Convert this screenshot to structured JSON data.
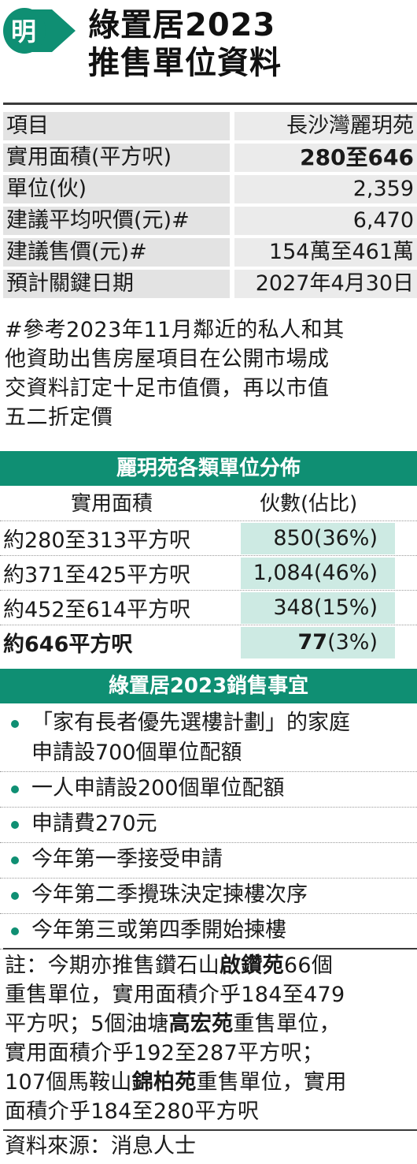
{
  "logo": {
    "text": "明",
    "accent_color": "#0f8f73"
  },
  "title": {
    "line1": "綠置居2023",
    "line2": "推售單位資料"
  },
  "info": [
    {
      "label": "項目",
      "value": "長沙灣麗玥苑"
    },
    {
      "label": "實用面積(平方呎)",
      "value": "280至646"
    },
    {
      "label": "單位(伙)",
      "value": "2,359"
    },
    {
      "label": "建議平均呎價(元)#",
      "value": "6,470"
    },
    {
      "label": "建議售價(元)#",
      "value": "154萬至461萬"
    },
    {
      "label": "預計關鍵日期",
      "value": "2027年4月30日"
    }
  ],
  "footnote": [
    "#參考2023年11月鄰近的私人和其",
    "他資助出售房屋項目在公開市場成",
    "交資料訂定十足市值價，再以市值",
    "五二折定價"
  ],
  "distribution": {
    "title": "麗玥苑各類單位分佈",
    "col1": "實用面積",
    "col2": "伙數(佔比)",
    "rows": [
      {
        "area": "約280至313平方呎",
        "count": "850",
        "pct": "(36%)"
      },
      {
        "area": "約371至425平方呎",
        "count": "1,084",
        "pct": "(46%)"
      },
      {
        "area": "約452至614平方呎",
        "count": "348",
        "pct": "(15%)"
      },
      {
        "area": "約646平方呎",
        "count": "77",
        "pct": "(3%)"
      }
    ]
  },
  "sales": {
    "title": "綠置居2023銷售事宜",
    "items": [
      {
        "line1": "「家有長者優先選樓計劃」的家庭",
        "line2": "申請設700個單位配額"
      },
      {
        "line1": "一人申請設200個單位配額"
      },
      {
        "line1": "申請費270元"
      },
      {
        "line1": "今年第一季接受申請"
      },
      {
        "line1": "今年第二季攪珠決定揀樓次序"
      },
      {
        "line1": "今年第三或第四季開始揀樓"
      }
    ]
  },
  "note": {
    "l1a": "註：今期亦推售鑽石山",
    "l1b": "啟鑽苑",
    "l1c": "66個",
    "l2": "重售單位，實用面積介乎184至479",
    "l3a": "平方呎；5個油塘",
    "l3b": "高宏苑",
    "l3c": "重售單位，",
    "l4": "實用面積介乎192至287平方呎；",
    "l5a": "107個馬鞍山",
    "l5b": "錦柏苑",
    "l5c": "重售單位，實用",
    "l6": "面積介乎184至280平方呎"
  },
  "source": "資料來源：消息人士"
}
